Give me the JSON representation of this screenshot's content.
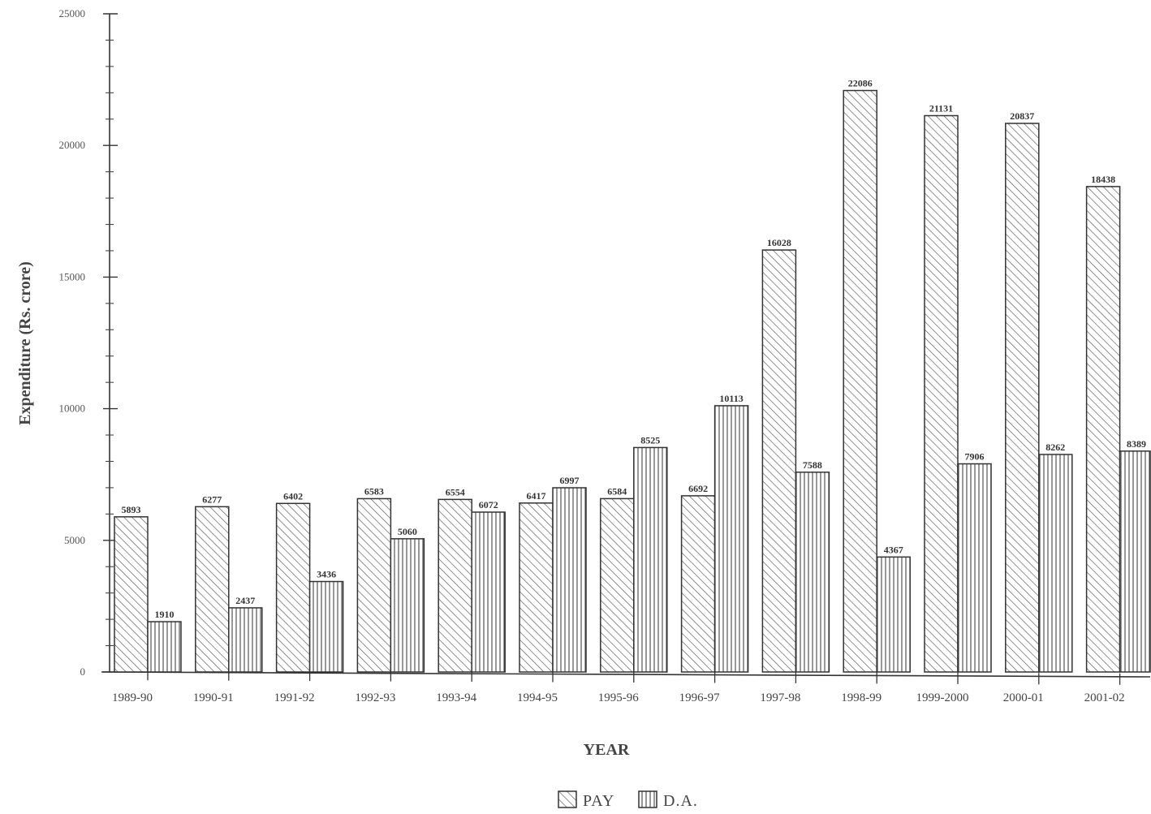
{
  "chart_data": {
    "type": "bar",
    "categories": [
      "1989-90",
      "1990-91",
      "1991-92",
      "1992-93",
      "1993-94",
      "1994-95",
      "1995-96",
      "1996-97",
      "1997-98",
      "1998-99",
      "1999-2000",
      "2000-01",
      "2001-02"
    ],
    "series": [
      {
        "name": "PAY",
        "pattern": "diagonal-hatch",
        "values": [
          5893,
          6277,
          6402,
          6583,
          6554,
          6417,
          6584,
          6692,
          16028,
          22086,
          21131,
          20837,
          18438
        ]
      },
      {
        "name": "D.A.",
        "pattern": "vertical-hatch",
        "values": [
          1910,
          2437,
          3436,
          5060,
          6072,
          6997,
          8525,
          10113,
          7588,
          4367,
          7906,
          8262,
          8389
        ]
      }
    ],
    "data_labels": [
      [
        "5893",
        "6277",
        "6402",
        "6583",
        "6554",
        "6417",
        "6584",
        "6692",
        "16028",
        "22086",
        "21131",
        "20837",
        "18438"
      ],
      [
        "1910",
        "2437",
        "3436",
        "5060",
        "6072",
        "6997",
        "8525",
        "10113",
        "7588",
        "4367",
        "7906",
        "8262",
        "8389"
      ]
    ],
    "xlabel": "YEAR",
    "ylabel": "Expenditure (Rs. crore)",
    "ylim": [
      0,
      25000
    ],
    "yticks": [
      0,
      5000,
      10000,
      15000,
      20000,
      25000
    ],
    "ytick_labels": [
      "0",
      "5000",
      "10000",
      "15000",
      "20000",
      "25000"
    ],
    "grid": false,
    "legend": {
      "position": "bottom-center",
      "labels": [
        "PAY",
        "D.A."
      ]
    }
  }
}
